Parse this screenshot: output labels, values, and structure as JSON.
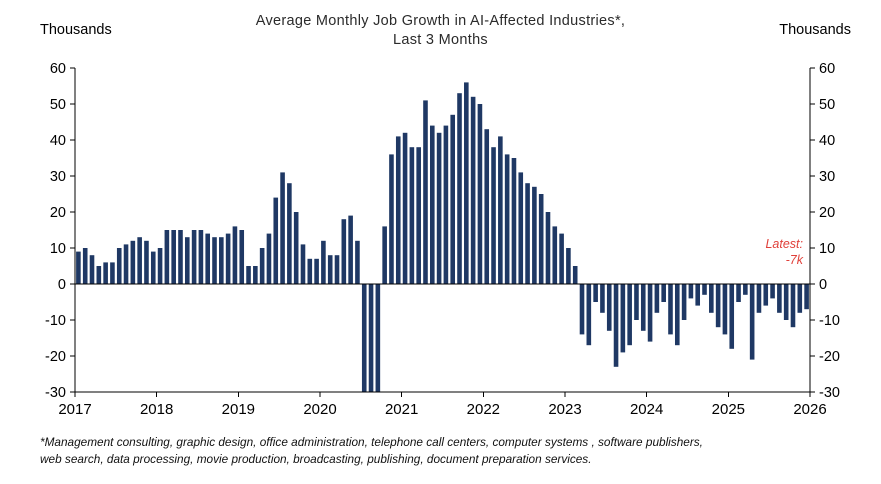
{
  "title_line1": "Average Monthly Job Growth in AI-Affected Industries*,",
  "title_line2": "Last 3 Months",
  "left_axis_units": "Thousands",
  "right_axis_units": "Thousands",
  "latest_label": "Latest:",
  "latest_value": "-7k",
  "footnote_line1": "*Management consulting, graphic design, office administration, telephone call centers, computer systems , software publishers,",
  "footnote_line2": "web search, data processing, movie production, broadcasting, publishing, document preparation services.",
  "colors": {
    "bar": "#1f3864",
    "latest_text": "#e0403a",
    "axis": "#000000",
    "background": "#ffffff"
  },
  "chart_data": {
    "type": "bar",
    "title": "Average Monthly Job Growth in AI-Affected Industries*, Last 3 Months",
    "ylabel": "Thousands",
    "ylim": [
      -30,
      60
    ],
    "y_ticks": [
      -30,
      -20,
      -10,
      0,
      10,
      20,
      30,
      40,
      50,
      60
    ],
    "x_start_year": 2017,
    "x_end_year": 2026,
    "x_tick_labels": [
      "2017",
      "2018",
      "2019",
      "2020",
      "2021",
      "2022",
      "2023",
      "2024",
      "2025",
      "2026"
    ],
    "grid": false,
    "legend": "none",
    "bars_clipped_at_ymin": true,
    "series": [
      {
        "name": "3-month average monthly job growth (thousands)",
        "start_month": "2017-01",
        "monthly_values": [
          9,
          10,
          8,
          5,
          6,
          6,
          10,
          11,
          12,
          13,
          12,
          9,
          10,
          15,
          15,
          15,
          13,
          15,
          15,
          14,
          13,
          13,
          14,
          16,
          15,
          5,
          5,
          10,
          14,
          24,
          31,
          28,
          20,
          11,
          7,
          7,
          12,
          8,
          8,
          18,
          19,
          12,
          -32,
          -33,
          -32,
          16,
          36,
          41,
          42,
          38,
          38,
          51,
          44,
          42,
          44,
          47,
          53,
          56,
          52,
          50,
          43,
          38,
          41,
          36,
          35,
          31,
          28,
          27,
          25,
          20,
          16,
          14,
          10,
          5,
          -14,
          -17,
          -5,
          -8,
          -13,
          -23,
          -19,
          -17,
          -10,
          -13,
          -16,
          -8,
          -5,
          -14,
          -17,
          -10,
          -4,
          -6,
          -3,
          -8,
          -12,
          -14,
          -18,
          -5,
          -3,
          -21,
          -8,
          -6,
          -4,
          -8,
          -10,
          -12,
          -8,
          -7
        ]
      }
    ]
  }
}
